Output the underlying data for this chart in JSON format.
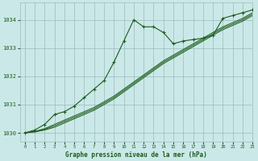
{
  "background_color": "#cbe8e8",
  "plot_bg_color": "#cbe8e8",
  "grid_color": "#99bbbb",
  "line_color": "#1a5c1a",
  "title": "Graphe pression niveau de la mer (hPa)",
  "xlim": [
    -0.5,
    23
  ],
  "ylim": [
    1029.7,
    1034.6
  ],
  "xticks": [
    0,
    1,
    2,
    3,
    4,
    5,
    6,
    7,
    8,
    9,
    10,
    11,
    12,
    13,
    14,
    15,
    16,
    17,
    18,
    19,
    20,
    21,
    22,
    23
  ],
  "yticks": [
    1030,
    1031,
    1032,
    1033,
    1034
  ],
  "series1_x": [
    0,
    1,
    2,
    3,
    4,
    5,
    6,
    7,
    8,
    9,
    10,
    11,
    12,
    13,
    14,
    15,
    16,
    17,
    18,
    19,
    20,
    21,
    22,
    23
  ],
  "series1_y": [
    1030.0,
    1030.1,
    1030.3,
    1030.65,
    1030.75,
    1030.95,
    1031.25,
    1031.55,
    1031.85,
    1032.5,
    1033.25,
    1034.0,
    1033.75,
    1033.75,
    1033.55,
    1033.15,
    1033.25,
    1033.3,
    1033.35,
    1033.45,
    1034.05,
    1034.15,
    1034.25,
    1034.35
  ],
  "series2_x": [
    0,
    1,
    2,
    3,
    4,
    5,
    6,
    7,
    8,
    9,
    10,
    11,
    12,
    13,
    14,
    15,
    16,
    17,
    18,
    19,
    20,
    21,
    22,
    23
  ],
  "series2_y": [
    1030.0,
    1030.05,
    1030.15,
    1030.3,
    1030.45,
    1030.6,
    1030.75,
    1030.9,
    1031.1,
    1031.3,
    1031.55,
    1031.8,
    1032.05,
    1032.3,
    1032.55,
    1032.75,
    1032.95,
    1033.15,
    1033.35,
    1033.55,
    1033.75,
    1033.9,
    1034.05,
    1034.25
  ],
  "series3_x": [
    0,
    1,
    2,
    3,
    4,
    5,
    6,
    7,
    8,
    9,
    10,
    11,
    12,
    13,
    14,
    15,
    16,
    17,
    18,
    19,
    20,
    21,
    22,
    23
  ],
  "series3_y": [
    1030.0,
    1030.05,
    1030.12,
    1030.25,
    1030.4,
    1030.55,
    1030.7,
    1030.85,
    1031.05,
    1031.25,
    1031.5,
    1031.75,
    1032.0,
    1032.25,
    1032.5,
    1032.7,
    1032.9,
    1033.1,
    1033.3,
    1033.5,
    1033.7,
    1033.85,
    1034.0,
    1034.2
  ],
  "series4_x": [
    0,
    1,
    2,
    3,
    4,
    5,
    6,
    7,
    8,
    9,
    10,
    11,
    12,
    13,
    14,
    15,
    16,
    17,
    18,
    19,
    20,
    21,
    22,
    23
  ],
  "series4_y": [
    1030.0,
    1030.03,
    1030.1,
    1030.2,
    1030.35,
    1030.5,
    1030.65,
    1030.8,
    1031.0,
    1031.2,
    1031.45,
    1031.7,
    1031.95,
    1032.2,
    1032.45,
    1032.65,
    1032.85,
    1033.05,
    1033.25,
    1033.45,
    1033.65,
    1033.8,
    1033.95,
    1034.15
  ]
}
